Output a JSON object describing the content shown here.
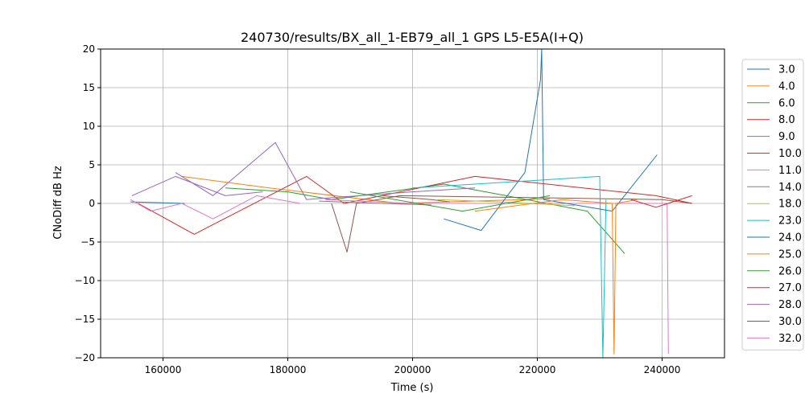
{
  "chart_data": {
    "type": "line",
    "title": "240730/results/BX_all_1-EB79_all_1 GPS L5-E5A(I+Q)",
    "xlabel": "Time (s)",
    "ylabel": "CNoDiff dB Hz",
    "xlim": [
      150000,
      250000
    ],
    "ylim": [
      -20,
      20
    ],
    "xticks": [
      160000,
      180000,
      200000,
      220000,
      240000
    ],
    "xtick_labels": [
      "160000",
      "180000",
      "200000",
      "220000",
      "240000"
    ],
    "yticks": [
      -20,
      -15,
      -10,
      -5,
      0,
      5,
      10,
      15,
      20
    ],
    "ytick_labels": [
      "−20",
      "−15",
      "−10",
      "−5",
      "0",
      "5",
      "10",
      "15",
      "20"
    ],
    "grid": true,
    "legend_placement": "outside-right",
    "series": [
      {
        "name": "3.0",
        "color": "#1f77b4",
        "x": [
          154800,
          163500
        ],
        "y": [
          0.2,
          0.0
        ]
      },
      {
        "name": "4.0",
        "color": "#ff7f0e",
        "x": [
          163000,
          177000,
          198000,
          222000
        ],
        "y": [
          3.5,
          2.0,
          0.0,
          0.6
        ]
      },
      {
        "name": "6.0",
        "color": "#2ca02c",
        "x": [
          170000,
          180000,
          187000,
          205000,
          215000,
          228000,
          234000
        ],
        "y": [
          2.0,
          1.5,
          0.5,
          2.5,
          1.0,
          -1.0,
          -6.5
        ]
      },
      {
        "name": "8.0",
        "color": "#d62728",
        "x": [
          156000,
          165000,
          183000,
          189000,
          210000,
          239000,
          244800
        ],
        "y": [
          0.0,
          -4.0,
          3.5,
          0.0,
          3.5,
          1.0,
          0.0
        ]
      },
      {
        "name": "9.0",
        "color": "#9467bd",
        "x": [
          162000,
          168000,
          178000,
          183000,
          200000,
          210000
        ],
        "y": [
          4.0,
          1.0,
          7.9,
          0.5,
          1.5,
          2.0
        ]
      },
      {
        "name": "10.0",
        "color": "#8c564b",
        "x": [
          187000,
          189500,
          191000,
          198000,
          240000,
          244800
        ],
        "y": [
          0.0,
          -6.3,
          0.0,
          1.0,
          0.5,
          0.0
        ]
      },
      {
        "name": "11.0",
        "color": "#e377c2",
        "x": [
          186000,
          200000,
          210000,
          240800,
          241000
        ],
        "y": [
          0.5,
          0.0,
          0.0,
          0.0,
          -19.5
        ]
      },
      {
        "name": "14.0",
        "color": "#7f7f7f",
        "x": [
          185000,
          195000,
          203000
        ],
        "y": [
          0.3,
          0.0,
          -0.2
        ]
      },
      {
        "name": "18.0",
        "color": "#bcbd22",
        "x": [
          204000,
          214000,
          226000
        ],
        "y": [
          0.5,
          0.2,
          -0.3
        ]
      },
      {
        "name": "23.0",
        "color": "#17becf",
        "x": [
          200000,
          220000,
          230000,
          230500,
          231000
        ],
        "y": [
          2.0,
          3.0,
          3.5,
          -20.0,
          0.5
        ]
      },
      {
        "name": "24.0",
        "color": "#1f77b4",
        "x": [
          205000,
          211000,
          218000,
          220500,
          220700,
          221000,
          232000,
          239200
        ],
        "y": [
          -2.0,
          -3.5,
          4.0,
          16.0,
          20.0,
          0.5,
          -1.0,
          6.3
        ]
      },
      {
        "name": "25.0",
        "color": "#ff7f0e",
        "x": [
          210000,
          224000,
          232000,
          232300,
          232600,
          236000
        ],
        "y": [
          -1.0,
          0.5,
          0.0,
          -19.5,
          0.0,
          0.5
        ]
      },
      {
        "name": "26.0",
        "color": "#2ca02c",
        "x": [
          190000,
          208000,
          222000
        ],
        "y": [
          1.5,
          -1.0,
          1.0
        ]
      },
      {
        "name": "27.0",
        "color": "#d62728",
        "x": [
          235000,
          239000,
          244800
        ],
        "y": [
          0.5,
          -0.5,
          1.0
        ]
      },
      {
        "name": "28.0",
        "color": "#9467bd",
        "x": [
          155000,
          162000,
          170000,
          176000
        ],
        "y": [
          1.0,
          3.5,
          1.0,
          1.5
        ]
      },
      {
        "name": "30.0",
        "color": "#8c564b",
        "x": [
          195000,
          203000,
          206000
        ],
        "y": [
          1.0,
          0.5,
          0.2
        ]
      },
      {
        "name": "32.0",
        "color": "#e377c2",
        "x": [
          154800,
          158000,
          163000,
          168000,
          175000,
          182000
        ],
        "y": [
          0.5,
          -1.0,
          0.0,
          -2.0,
          1.0,
          0.0
        ]
      }
    ]
  }
}
